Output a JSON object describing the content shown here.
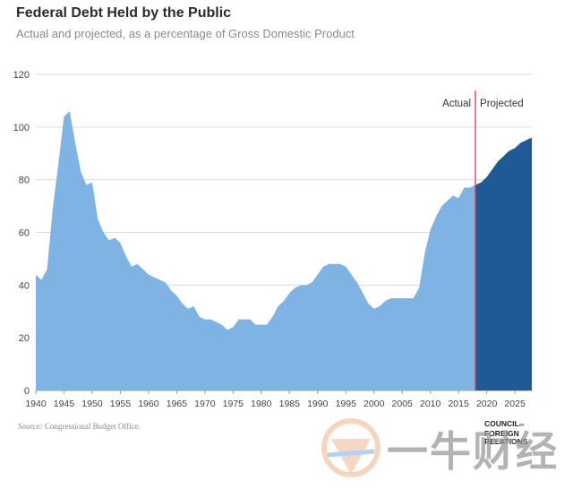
{
  "header": {
    "title": "Federal Debt Held by the Public",
    "subtitle": "Actual and projected, as a percentage of Gross Domestic Product"
  },
  "footer": {
    "source_label": "Source:",
    "source_text": "Congressional Budget Office.",
    "logo_line1": "COUNCIL",
    "logo_small": "on",
    "logo_line2": "FOREIGN",
    "logo_line3": "RELATIONS",
    "watermark_text": "一牛财经"
  },
  "chart_data": {
    "type": "area",
    "title": "Federal Debt Held by the Public",
    "subtitle": "Actual and projected, as a percentage of Gross Domestic Product",
    "xlabel": "",
    "ylabel": "",
    "xlim": [
      1940,
      2028
    ],
    "ylim": [
      0,
      120
    ],
    "x_ticks": [
      "1940",
      "1945",
      "1950",
      "1955",
      "1960",
      "1965",
      "1970",
      "1975",
      "1980",
      "1985",
      "1990",
      "1995",
      "2000",
      "2005",
      "2010",
      "2015",
      "2020",
      "2025"
    ],
    "y_ticks": [
      "0",
      "20",
      "40",
      "60",
      "80",
      "100",
      "120"
    ],
    "grid": "horizontal",
    "divider": {
      "x": 2018,
      "left_label": "Actual",
      "right_label": "Projected",
      "color": "#e0393e"
    },
    "colors": {
      "actual": "#7fb3e3",
      "projected": "#1f5a96",
      "grid": "#dcdcdc",
      "divider": "#e0393e"
    },
    "series": [
      {
        "name": "Actual",
        "x": [
          1940,
          1941,
          1942,
          1943,
          1944,
          1945,
          1946,
          1947,
          1948,
          1949,
          1950,
          1951,
          1952,
          1953,
          1954,
          1955,
          1956,
          1957,
          1958,
          1959,
          1960,
          1961,
          1962,
          1963,
          1964,
          1965,
          1966,
          1967,
          1968,
          1969,
          1970,
          1971,
          1972,
          1973,
          1974,
          1975,
          1976,
          1977,
          1978,
          1979,
          1980,
          1981,
          1982,
          1983,
          1984,
          1985,
          1986,
          1987,
          1988,
          1989,
          1990,
          1991,
          1992,
          1993,
          1994,
          1995,
          1996,
          1997,
          1998,
          1999,
          2000,
          2001,
          2002,
          2003,
          2004,
          2005,
          2006,
          2007,
          2008,
          2009,
          2010,
          2011,
          2012,
          2013,
          2014,
          2015,
          2016,
          2017,
          2018
        ],
        "y": [
          44,
          42,
          46,
          69,
          86,
          104,
          106,
          94,
          83,
          78,
          79,
          65,
          60,
          57,
          58,
          56,
          51,
          47,
          48,
          46,
          44,
          43,
          42,
          41,
          38,
          36,
          33,
          31,
          32,
          28,
          27,
          27,
          26,
          25,
          23,
          24,
          27,
          27,
          27,
          25,
          25,
          25,
          28,
          32,
          34,
          37,
          39,
          40,
          40,
          41,
          44,
          47,
          48,
          48,
          48,
          47,
          44,
          41,
          37,
          33,
          31,
          32,
          34,
          35,
          35,
          35,
          35,
          35,
          39,
          52,
          61,
          66,
          70,
          72,
          74,
          73,
          77,
          77,
          78
        ]
      },
      {
        "name": "Projected",
        "x": [
          2018,
          2019,
          2020,
          2021,
          2022,
          2023,
          2024,
          2025,
          2026,
          2027,
          2028
        ],
        "y": [
          78,
          79,
          81,
          84,
          87,
          89,
          91,
          92,
          94,
          95,
          96
        ]
      }
    ]
  }
}
